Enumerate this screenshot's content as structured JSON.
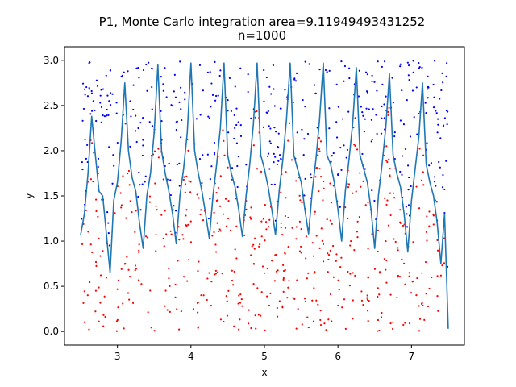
{
  "chart_data": {
    "type": "scatter",
    "title_line1": "P1, Monte Carlo integration area=9.11949493431252",
    "title_line2": "n=1000",
    "xlabel": "x",
    "ylabel": "y",
    "xlim": [
      2.28,
      7.72
    ],
    "ylim": [
      -0.15,
      3.15
    ],
    "x_ticks": [
      3,
      4,
      5,
      6,
      7
    ],
    "y_ticks": [
      0.0,
      0.5,
      1.0,
      1.5,
      2.0,
      2.5,
      3.0
    ],
    "x_tick_labels": [
      "3",
      "4",
      "5",
      "6",
      "7"
    ],
    "y_tick_labels": [
      "0.0",
      "0.5",
      "1.0",
      "1.5",
      "2.0",
      "2.5",
      "3.0"
    ],
    "sample_count": 1000,
    "sample_x_range": [
      2.5,
      7.5
    ],
    "sample_y_range": [
      0,
      3
    ],
    "colors": {
      "curve": "#1f77b4",
      "above_points": "#0000ff",
      "below_points": "#ff0000"
    },
    "curve": {
      "x": [
        2.5,
        2.55,
        2.6,
        2.65,
        2.7,
        2.75,
        2.8,
        2.85,
        2.9,
        2.95,
        3.0,
        3.05,
        3.1,
        3.15,
        3.2,
        3.25,
        3.3,
        3.35,
        3.4,
        3.45,
        3.5,
        3.55,
        3.6,
        3.65,
        3.7,
        3.75,
        3.8,
        3.85,
        3.9,
        3.95,
        4.0,
        4.05,
        4.1,
        4.15,
        4.2,
        4.25,
        4.3,
        4.35,
        4.4,
        4.45,
        4.5,
        4.55,
        4.6,
        4.65,
        4.7,
        4.75,
        4.8,
        4.85,
        4.9,
        4.95,
        5.0,
        5.05,
        5.1,
        5.15,
        5.2,
        5.25,
        5.3,
        5.35,
        5.4,
        5.45,
        5.5,
        5.55,
        5.6,
        5.65,
        5.7,
        5.75,
        5.8,
        5.85,
        5.9,
        5.95,
        6.0,
        6.05,
        6.1,
        6.15,
        6.2,
        6.25,
        6.3,
        6.35,
        6.4,
        6.45,
        6.5,
        6.55,
        6.6,
        6.65,
        6.7,
        6.75,
        6.8,
        6.85,
        6.9,
        6.95,
        7.0,
        7.05,
        7.1,
        7.15,
        7.2,
        7.25,
        7.3,
        7.35,
        7.4,
        7.45,
        7.5
      ],
      "y": [
        1.07,
        1.3,
        1.75,
        2.38,
        1.95,
        1.55,
        1.5,
        1.08,
        0.65,
        1.45,
        1.65,
        2.1,
        2.75,
        2.0,
        1.7,
        1.55,
        1.2,
        0.92,
        1.5,
        1.75,
        2.2,
        2.95,
        2.0,
        1.75,
        1.55,
        1.3,
        0.97,
        1.5,
        1.8,
        2.2,
        2.97,
        2.0,
        1.75,
        1.55,
        1.3,
        1.03,
        1.5,
        1.85,
        2.25,
        2.97,
        1.95,
        1.75,
        1.6,
        1.35,
        1.05,
        1.5,
        1.85,
        2.3,
        2.97,
        1.95,
        1.8,
        1.6,
        1.35,
        1.07,
        1.55,
        1.9,
        2.35,
        2.97,
        1.95,
        1.8,
        1.65,
        1.35,
        1.08,
        1.55,
        1.9,
        2.35,
        2.97,
        1.95,
        1.85,
        1.65,
        1.35,
        1.0,
        1.55,
        1.9,
        2.3,
        2.92,
        1.95,
        1.8,
        1.65,
        1.35,
        0.92,
        1.5,
        1.85,
        2.25,
        2.85,
        1.95,
        1.75,
        1.6,
        1.3,
        0.88,
        1.45,
        1.8,
        2.15,
        2.75,
        1.85,
        1.65,
        1.5,
        1.2,
        0.75,
        1.3,
        0.03
      ]
    }
  }
}
